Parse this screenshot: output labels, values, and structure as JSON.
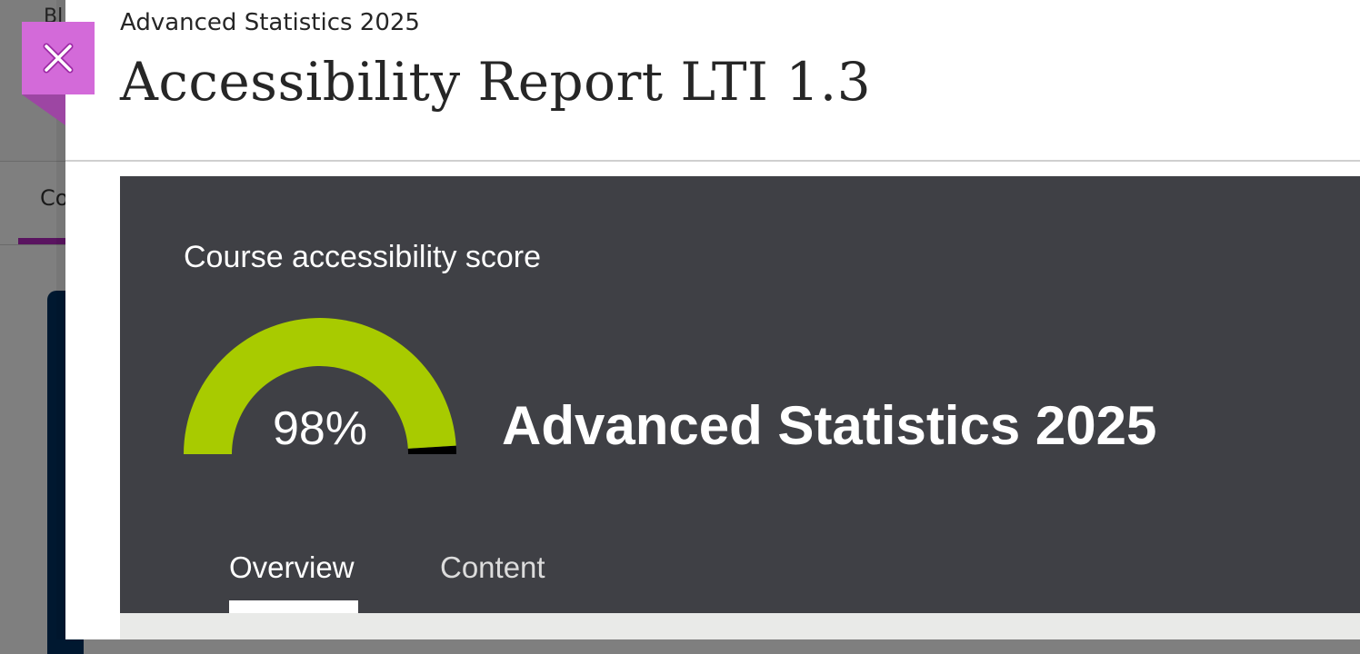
{
  "background": {
    "title_fragment": "Bl",
    "tab_fragment": "Co"
  },
  "header": {
    "course_name": "Advanced Statistics 2025",
    "title": "Accessibility Report LTI 1.3",
    "close_icon": "close-x-icon"
  },
  "report": {
    "score_label": "Course accessibility score",
    "score_percent": 98,
    "score_text": "98%",
    "course_name": "Advanced Statistics 2025",
    "tabs": [
      {
        "label": "Overview",
        "active": true
      },
      {
        "label": "Content",
        "active": false
      }
    ]
  },
  "colors": {
    "accent": "#d36ad9",
    "gauge_fill": "#a8cb00",
    "gauge_empty": "#000000",
    "panel": "#3f4045"
  }
}
